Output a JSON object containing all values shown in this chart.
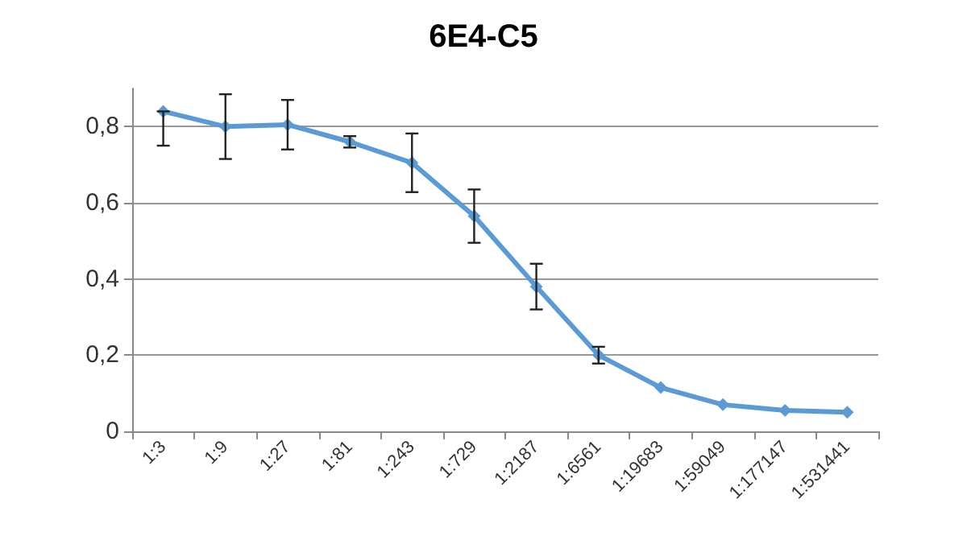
{
  "chart_data": {
    "type": "line",
    "title": "6E4-C5",
    "categories": [
      "1:3",
      "1:9",
      "1:27",
      "1:81",
      "1:243",
      "1:729",
      "1:2187",
      "1:6561",
      "1:19683",
      "1:59049",
      "1:177147",
      "1:531441"
    ],
    "series": [
      {
        "color": "#5b9bd5",
        "values": [
          0.84,
          0.8,
          0.805,
          0.76,
          0.705,
          0.565,
          0.38,
          0.2,
          0.115,
          0.07,
          0.055,
          0.05
        ],
        "errors": [
          [
            0.75,
            0.84
          ],
          0.085,
          0.065,
          0.015,
          0.077,
          0.07,
          0.06,
          0.022,
          null,
          null,
          null,
          null
        ]
      }
    ],
    "ylim": [
      0,
      0.9
    ],
    "yticks": [
      {
        "value": 0,
        "label": "0"
      },
      {
        "value": 0.2,
        "label": "0,2"
      },
      {
        "value": 0.4,
        "label": "0,4"
      },
      {
        "value": 0.6,
        "label": "0,6"
      },
      {
        "value": 0.8,
        "label": "0,8"
      }
    ],
    "grid": "y",
    "marker": "diamond",
    "line_style": "solid"
  }
}
